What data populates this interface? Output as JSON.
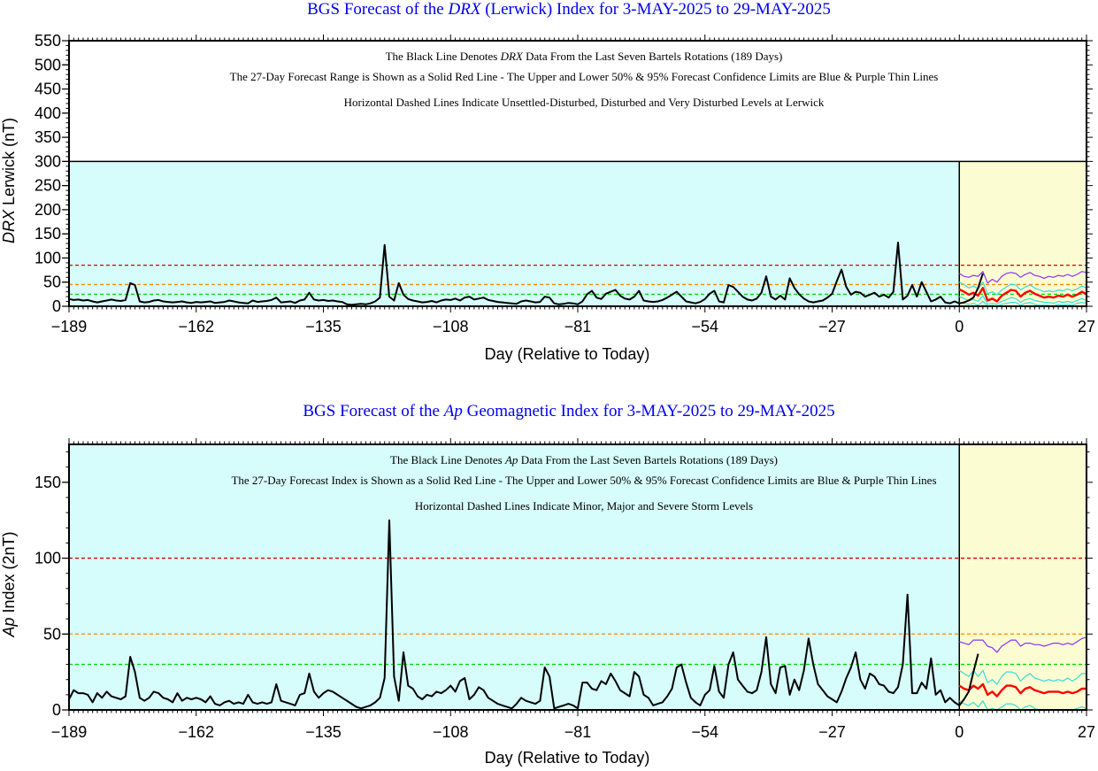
{
  "chart_data": [
    {
      "type": "line",
      "title_prefix": "BGS Forecast of the ",
      "title_italic": "DRX",
      "title_suffix": " (Lerwick) Index for 3-MAY-2025 to 29-MAY-2025",
      "ylabel_italic": "DRX",
      "ylabel_rest": " Lerwick (nT)",
      "xlabel": "Day (Relative to Today)",
      "xlim": [
        -189,
        27
      ],
      "ylim": [
        0,
        550
      ],
      "x_ticks": [
        -189,
        -162,
        -135,
        -108,
        -81,
        -54,
        -27,
        0,
        27
      ],
      "y_ticks": [
        0,
        50,
        100,
        150,
        200,
        250,
        300,
        350,
        400,
        450,
        500,
        550
      ],
      "shaded_top": 300,
      "notes": [
        {
          "before": "The Black Line Denotes ",
          "italic": "DRX",
          "after": " Data From the Last Seven Bartels Rotations (189 Days)"
        },
        {
          "before": "The 27-Day Forecast Range is Shown as a Solid Red Line - The Upper and Lower 50% & 95% Forecast Confidence Limits are Blue & Purple Thin Lines",
          "italic": "",
          "after": ""
        },
        {
          "before": "Horizontal Dashed Lines Indicate Unsettled-Disturbed, Disturbed and Very Disturbed Levels at Lerwick",
          "italic": "",
          "after": ""
        }
      ],
      "thresholds": [
        {
          "value": 25,
          "color": "#00dd00"
        },
        {
          "value": 45,
          "color": "#ff8800"
        },
        {
          "value": 85,
          "color": "#dd0000"
        }
      ],
      "observed": [
        15,
        13,
        14,
        12,
        13,
        10,
        8,
        10,
        12,
        14,
        12,
        11,
        13,
        48,
        44,
        10,
        8,
        9,
        12,
        13,
        10,
        9,
        8,
        9,
        10,
        8,
        7,
        9,
        8,
        9,
        10,
        7,
        8,
        9,
        12,
        10,
        8,
        7,
        6,
        12,
        9,
        10,
        11,
        13,
        18,
        8,
        9,
        10,
        7,
        12,
        14,
        28,
        14,
        12,
        13,
        11,
        12,
        10,
        9,
        4,
        3,
        4,
        5,
        4,
        6,
        10,
        18,
        127,
        20,
        12,
        48,
        24,
        15,
        12,
        10,
        8,
        9,
        11,
        8,
        12,
        14,
        13,
        16,
        12,
        18,
        20,
        14,
        16,
        18,
        13,
        11,
        9,
        8,
        7,
        6,
        5,
        10,
        12,
        10,
        8,
        9,
        20,
        18,
        6,
        4,
        5,
        7,
        6,
        4,
        10,
        25,
        32,
        18,
        15,
        26,
        30,
        34,
        22,
        16,
        14,
        20,
        32,
        12,
        10,
        9,
        10,
        13,
        18,
        24,
        30,
        20,
        10,
        8,
        6,
        9,
        15,
        26,
        32,
        10,
        8,
        44,
        40,
        30,
        20,
        14,
        12,
        16,
        28,
        62,
        20,
        14,
        22,
        14,
        58,
        38,
        25,
        16,
        10,
        8,
        10,
        12,
        18,
        26,
        52,
        76,
        40,
        24,
        30,
        28,
        20,
        24,
        28,
        20,
        24,
        18,
        30,
        132,
        14,
        22,
        44,
        20,
        50,
        30,
        10,
        14,
        20,
        8,
        6,
        10,
        6,
        8,
        12,
        18,
        38,
        68
      ],
      "forecast": [
        35,
        30,
        24,
        28,
        22,
        38,
        12,
        16,
        10,
        22,
        28,
        34,
        32,
        20,
        28,
        32,
        26,
        22,
        18,
        20,
        18,
        22,
        20,
        24,
        20,
        24,
        30,
        25
      ],
      "upper50": [
        50,
        45,
        38,
        42,
        36,
        50,
        26,
        30,
        24,
        34,
        40,
        46,
        44,
        34,
        40,
        44,
        38,
        34,
        30,
        32,
        30,
        34,
        32,
        36,
        32,
        36,
        42,
        38
      ],
      "lower50": [
        20,
        16,
        12,
        14,
        10,
        22,
        4,
        6,
        4,
        10,
        14,
        18,
        16,
        8,
        14,
        16,
        12,
        10,
        8,
        8,
        6,
        10,
        8,
        10,
        8,
        12,
        16,
        12
      ],
      "upper95": [
        68,
        62,
        60,
        64,
        62,
        72,
        48,
        56,
        50,
        62,
        68,
        70,
        68,
        60,
        66,
        70,
        64,
        62,
        58,
        62,
        60,
        64,
        62,
        66,
        62,
        66,
        72,
        70
      ],
      "lower95": [
        8,
        6,
        4,
        6,
        2,
        10,
        0,
        2,
        0,
        4,
        6,
        8,
        8,
        2,
        6,
        8,
        4,
        2,
        2,
        2,
        0,
        4,
        2,
        4,
        2,
        6,
        8,
        6
      ]
    },
    {
      "type": "line",
      "title_prefix": "BGS Forecast of the ",
      "title_italic": "Ap",
      "title_suffix": " Geomagnetic Index for 3-MAY-2025 to 29-MAY-2025",
      "ylabel_italic": "Ap",
      "ylabel_rest": " Index (2nT)",
      "xlabel": "Day (Relative to Today)",
      "xlim": [
        -189,
        27
      ],
      "ylim": [
        0,
        175
      ],
      "x_ticks": [
        -189,
        -162,
        -135,
        -108,
        -81,
        -54,
        -27,
        0,
        27
      ],
      "y_ticks": [
        0,
        50,
        100,
        150
      ],
      "shaded_top": 175,
      "notes": [
        {
          "before": "The Black Line Denotes ",
          "italic": "Ap",
          "after": " Data From the Last Seven Bartels Rotations (189 Days)"
        },
        {
          "before": "The 27-Day Forecast Index is Shown as a Solid Red Line - The Upper and Lower 50% & 95% Forecast Confidence Limits are Blue & Purple Thin Lines",
          "italic": "",
          "after": ""
        },
        {
          "before": "Horizontal Dashed Lines Indicate Minor, Major and Severe Storm Levels",
          "italic": "",
          "after": ""
        }
      ],
      "thresholds": [
        {
          "value": 30,
          "color": "#00dd00"
        },
        {
          "value": 50,
          "color": "#ff8800"
        },
        {
          "value": 100,
          "color": "#dd0000"
        }
      ],
      "observed": [
        7,
        13,
        11,
        11,
        10,
        5,
        11,
        8,
        12,
        9,
        8,
        7,
        9,
        35,
        25,
        8,
        6,
        8,
        12,
        11,
        8,
        7,
        5,
        11,
        6,
        8,
        7,
        8,
        7,
        5,
        9,
        4,
        3,
        5,
        6,
        4,
        5,
        4,
        10,
        5,
        4,
        5,
        4,
        5,
        17,
        6,
        5,
        4,
        3,
        10,
        11,
        24,
        12,
        8,
        11,
        13,
        12,
        10,
        8,
        6,
        4,
        2,
        1,
        2,
        3,
        5,
        8,
        21,
        125,
        22,
        6,
        38,
        16,
        14,
        9,
        7,
        10,
        9,
        12,
        11,
        13,
        16,
        12,
        19,
        21,
        7,
        10,
        15,
        13,
        8,
        6,
        4,
        3,
        2,
        1,
        4,
        8,
        6,
        5,
        4,
        6,
        28,
        22,
        1,
        2,
        3,
        4,
        3,
        1,
        18,
        18,
        14,
        13,
        19,
        17,
        24,
        19,
        13,
        11,
        9,
        25,
        22,
        10,
        8,
        3,
        4,
        5,
        9,
        14,
        28,
        30,
        18,
        8,
        5,
        3,
        10,
        13,
        29,
        12,
        8,
        30,
        38,
        20,
        16,
        12,
        11,
        13,
        25,
        48,
        17,
        11,
        28,
        29,
        10,
        20,
        13,
        26,
        47,
        30,
        17,
        13,
        9,
        7,
        5,
        12,
        21,
        28,
        38,
        20,
        14,
        24,
        22,
        17,
        16,
        12,
        11,
        15,
        30,
        76,
        11,
        11,
        18,
        14,
        34,
        10,
        13,
        5,
        8,
        5,
        3,
        7,
        12,
        25,
        37
      ],
      "forecast": [
        16,
        14,
        13,
        16,
        14,
        17,
        10,
        12,
        9,
        13,
        16,
        16,
        15,
        11,
        14,
        15,
        13,
        12,
        11,
        12,
        12,
        12,
        11,
        12,
        11,
        12,
        14,
        14
      ],
      "upper50": [
        26,
        24,
        22,
        26,
        22,
        26,
        18,
        20,
        17,
        22,
        25,
        25,
        24,
        19,
        22,
        24,
        21,
        20,
        19,
        20,
        19,
        20,
        19,
        21,
        19,
        21,
        24,
        24
      ],
      "lower50": [
        6,
        4,
        3,
        5,
        2,
        6,
        0,
        1,
        0,
        2,
        4,
        4,
        3,
        0,
        2,
        3,
        1,
        0,
        0,
        0,
        0,
        0,
        0,
        0,
        0,
        1,
        2,
        1
      ],
      "upper95": [
        45,
        44,
        43,
        46,
        46,
        46,
        42,
        41,
        38,
        42,
        44,
        46,
        46,
        42,
        44,
        44,
        43,
        43,
        42,
        43,
        44,
        44,
        43,
        44,
        43,
        45,
        47,
        48
      ],
      "lower95": [
        0,
        0,
        0,
        0,
        0,
        0,
        0,
        0,
        0,
        0,
        0,
        0,
        0,
        0,
        0,
        0,
        0,
        0,
        0,
        0,
        0,
        0,
        0,
        0,
        0,
        0,
        0,
        0
      ]
    }
  ],
  "colors": {
    "title": "#0000ee",
    "past_fill": "#d6fcfc",
    "forecast_fill": "#fcfcd2",
    "observed": "#000000",
    "forecast": "#ff0000",
    "band50": "#33dddd",
    "band95": "#8833ff"
  }
}
